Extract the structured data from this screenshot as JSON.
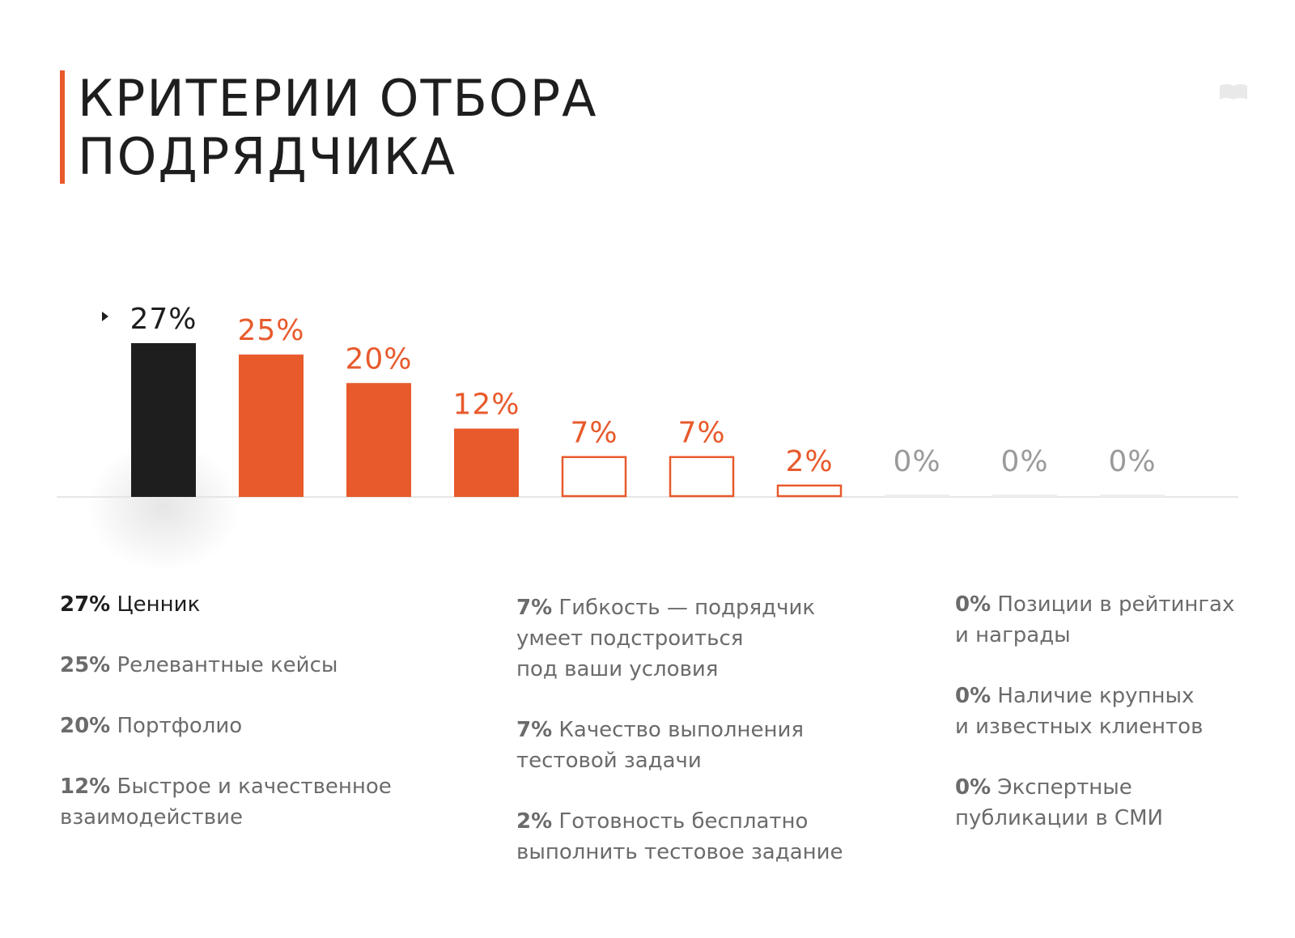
{
  "header": {
    "title_line1": "КРИТЕРИИ ОТБОРА",
    "title_line2": "ПОДРЯДЧИКА"
  },
  "colors": {
    "accent": "#e85a2c",
    "dark": "#1e1e1e",
    "muted": "#9a9a9a",
    "axis": "#e6e6e6"
  },
  "chart_data": {
    "type": "bar",
    "categories": [
      "Ценник",
      "Релевантные кейсы",
      "Портфолио",
      "Быстрое и качественное взаимодействие",
      "Гибкость — подрядчик умеет подстроиться под ваши условия",
      "Качество выполнения тестовой задачи",
      "Готовность бесплатно выполнить тестовое задание",
      "Позиции в рейтингах и награды",
      "Наличие крупных и известных клиентов",
      "Экспертные публикации в СМИ"
    ],
    "values": [
      27,
      25,
      20,
      12,
      7,
      7,
      2,
      0,
      0,
      0
    ],
    "value_labels": [
      "27%",
      "25%",
      "20%",
      "12%",
      "7%",
      "7%",
      "2%",
      "0%",
      "0%",
      "0%"
    ],
    "styles": [
      "dark",
      "filled",
      "filled",
      "filled",
      "outline",
      "outline",
      "outline",
      "empty",
      "empty",
      "empty"
    ],
    "ylim": [
      0,
      27
    ],
    "grid": false,
    "legend": "below"
  },
  "legend": {
    "col1": [
      {
        "pct": "27%",
        "lines": [
          "Ценник"
        ]
      },
      {
        "pct": "25%",
        "lines": [
          "Релевантные кейсы"
        ]
      },
      {
        "pct": "20%",
        "lines": [
          "Портфолио"
        ]
      },
      {
        "pct": "12%",
        "lines": [
          "Быстрое и качественное",
          "взаимодействие"
        ]
      }
    ],
    "col2": [
      {
        "pct": "7%",
        "lines": [
          "Гибкость — подрядчик",
          "умеет подстроиться",
          "под ваши условия"
        ]
      },
      {
        "pct": "7%",
        "lines": [
          "Качество выполнения",
          "тестовой задачи"
        ]
      },
      {
        "pct": "2%",
        "lines": [
          "Готовность бесплатно",
          "выполнить тестовое задание"
        ]
      }
    ],
    "col3": [
      {
        "pct": "0%",
        "lines": [
          "Позиции в рейтингах",
          "и награды"
        ]
      },
      {
        "pct": "0%",
        "lines": [
          "Наличие крупных",
          "и известных клиентов"
        ]
      },
      {
        "pct": "0%",
        "lines": [
          "Экспертные",
          "публикации в СМИ"
        ]
      }
    ]
  }
}
